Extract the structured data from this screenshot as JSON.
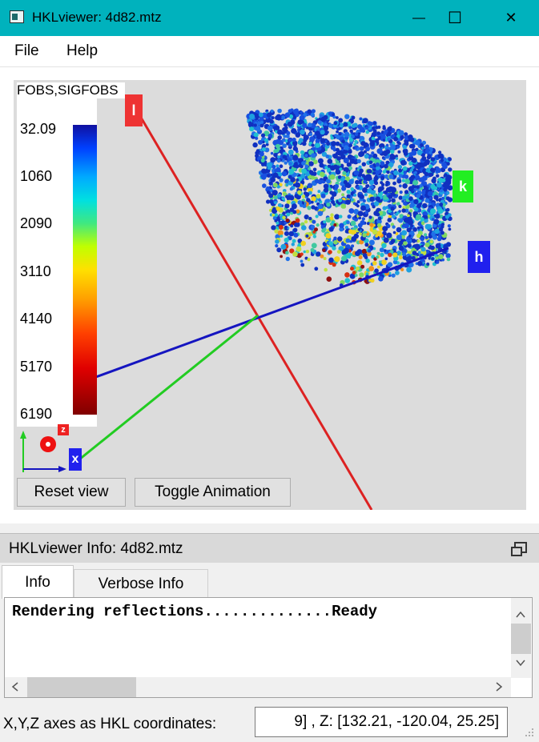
{
  "window": {
    "title": "HKLviewer: 4d82.mtz",
    "minimize_glyph": "—",
    "maximize_glyph": "☐",
    "close_glyph": "✕"
  },
  "menu": {
    "file": "File",
    "help": "Help"
  },
  "viewer": {
    "legend": {
      "title": "FOBS,SIGFOBS",
      "labels": [
        "32.09",
        "1060",
        "2090",
        "3110",
        "4140",
        "5170",
        "6190"
      ]
    },
    "axes": {
      "l": "l",
      "k": "k",
      "h": "h",
      "x": "x",
      "z": "z"
    },
    "buttons": {
      "reset": "Reset view",
      "toggle_animation": "Toggle Animation"
    },
    "colors": {
      "l_axis": "#dd2222",
      "k_axis": "#22cc22",
      "h_axis": "#1515c0",
      "background": "#dcdcdc"
    }
  },
  "info_dock": {
    "title": "HKLviewer Info: 4d82.mtz",
    "tabs": [
      "Info",
      "Verbose Info"
    ],
    "active_tab": "Info",
    "text": "Rendering reflections..............Ready"
  },
  "status": {
    "label": "X,Y,Z axes as HKL coordinates:",
    "value": "9] , Z: [132.21, -120.04, 25.25]"
  }
}
